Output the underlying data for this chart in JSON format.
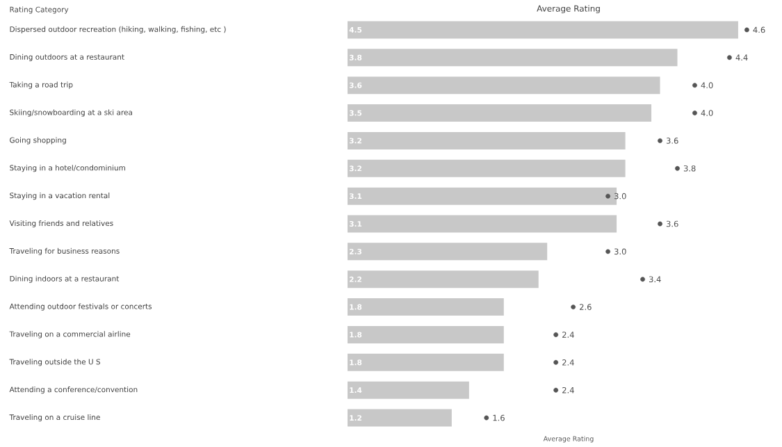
{
  "chart_data": {
    "type": "bar",
    "orientation": "horizontal",
    "title": "Average Rating",
    "xlabel": "Average Rating",
    "ylabel": "Rating Category",
    "categories": [
      "Dispersed outdoor recreation (hiking, walking, fishing, etc )",
      "Dining outdoors at a restaurant",
      "Taking a road trip",
      "Skiing/snowboarding at a ski area",
      "Going shopping",
      "Staying in a hotel/condominium",
      "Staying in a vacation rental",
      "Visiting friends and relatives",
      "Traveling for business reasons",
      "Dining indoors at a restaurant",
      "Attending outdoor festivals or concerts",
      "Traveling on a commercial airline",
      "Traveling outside the U S",
      "Attending a conference/convention",
      "Traveling on a cruise line"
    ],
    "data_labels": true,
    "series": [
      {
        "color": "#c8c8c8",
        "values": [
          4.5,
          3.8,
          3.6,
          3.5,
          3.2,
          3.2,
          3.1,
          3.1,
          2.3,
          2.2,
          1.8,
          1.8,
          1.8,
          1.4,
          1.2
        ]
      },
      {
        "type": "scatter",
        "color": "#555555",
        "marker": "circle",
        "values": [
          4.6,
          4.4,
          4.0,
          4.0,
          3.6,
          3.8,
          3.0,
          3.6,
          3.0,
          3.4,
          2.6,
          2.4,
          2.4,
          2.4,
          1.6
        ],
        "value_labels": [
          "4.6",
          "4.4",
          "4.0",
          "4.0",
          "3.6",
          "3.8",
          "3.0",
          "3.6",
          "3.0",
          "3.4",
          "2.6",
          "2.4",
          "2.4",
          "2.4",
          "1.6"
        ]
      }
    ]
  }
}
